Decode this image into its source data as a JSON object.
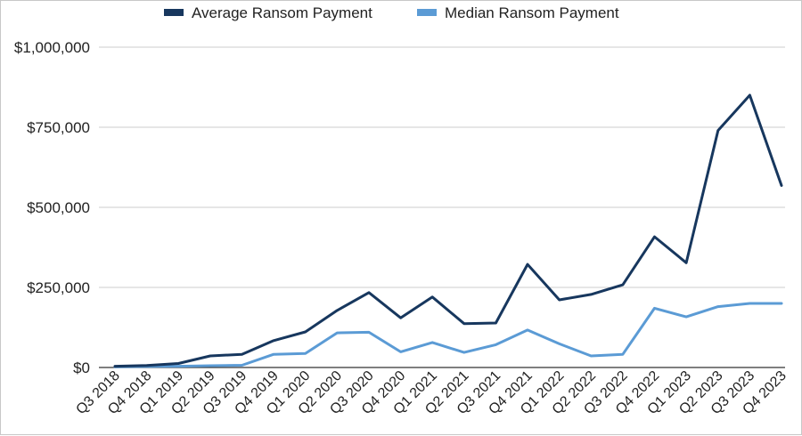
{
  "chart_data": {
    "type": "line",
    "categories": [
      "Q3 2018",
      "Q4 2018",
      "Q1 2019",
      "Q2 2019",
      "Q3 2019",
      "Q4 2019",
      "Q1 2020",
      "Q2 2020",
      "Q3 2020",
      "Q4 2020",
      "Q1 2021",
      "Q2 2021",
      "Q3 2021",
      "Q4 2021",
      "Q1 2022",
      "Q2 2022",
      "Q3 2022",
      "Q4 2022",
      "Q1 2023",
      "Q2 2023",
      "Q3 2023",
      "Q4 2023"
    ],
    "series": [
      {
        "name": "Average Ransom Payment",
        "color": "#17375e",
        "values": [
          4000,
          6000,
          12500,
          36000,
          41000,
          84000,
          111000,
          178000,
          234000,
          155000,
          220000,
          137000,
          139000,
          322000,
          211000,
          228000,
          258000,
          408000,
          327000,
          740000,
          850000,
          568000
        ]
      },
      {
        "name": "Median Ransom Payment",
        "color": "#5b9bd5",
        "values": [
          2000,
          3000,
          4000,
          5500,
          7000,
          41000,
          44000,
          108000,
          110000,
          49000,
          78000,
          47000,
          71000,
          117000,
          74000,
          36000,
          41000,
          185000,
          158000,
          190000,
          200000,
          200000
        ]
      }
    ],
    "ylim": [
      0,
      1000000
    ],
    "yticks": [
      {
        "value": 0,
        "label": "$0"
      },
      {
        "value": 250000,
        "label": "$250,000"
      },
      {
        "value": 500000,
        "label": "$500,000"
      },
      {
        "value": 750000,
        "label": "$750,000"
      },
      {
        "value": 1000000,
        "label": "$1,000,000"
      }
    ],
    "grid": true,
    "legend_position": "top-center",
    "title": "",
    "xlabel": "",
    "ylabel": ""
  }
}
